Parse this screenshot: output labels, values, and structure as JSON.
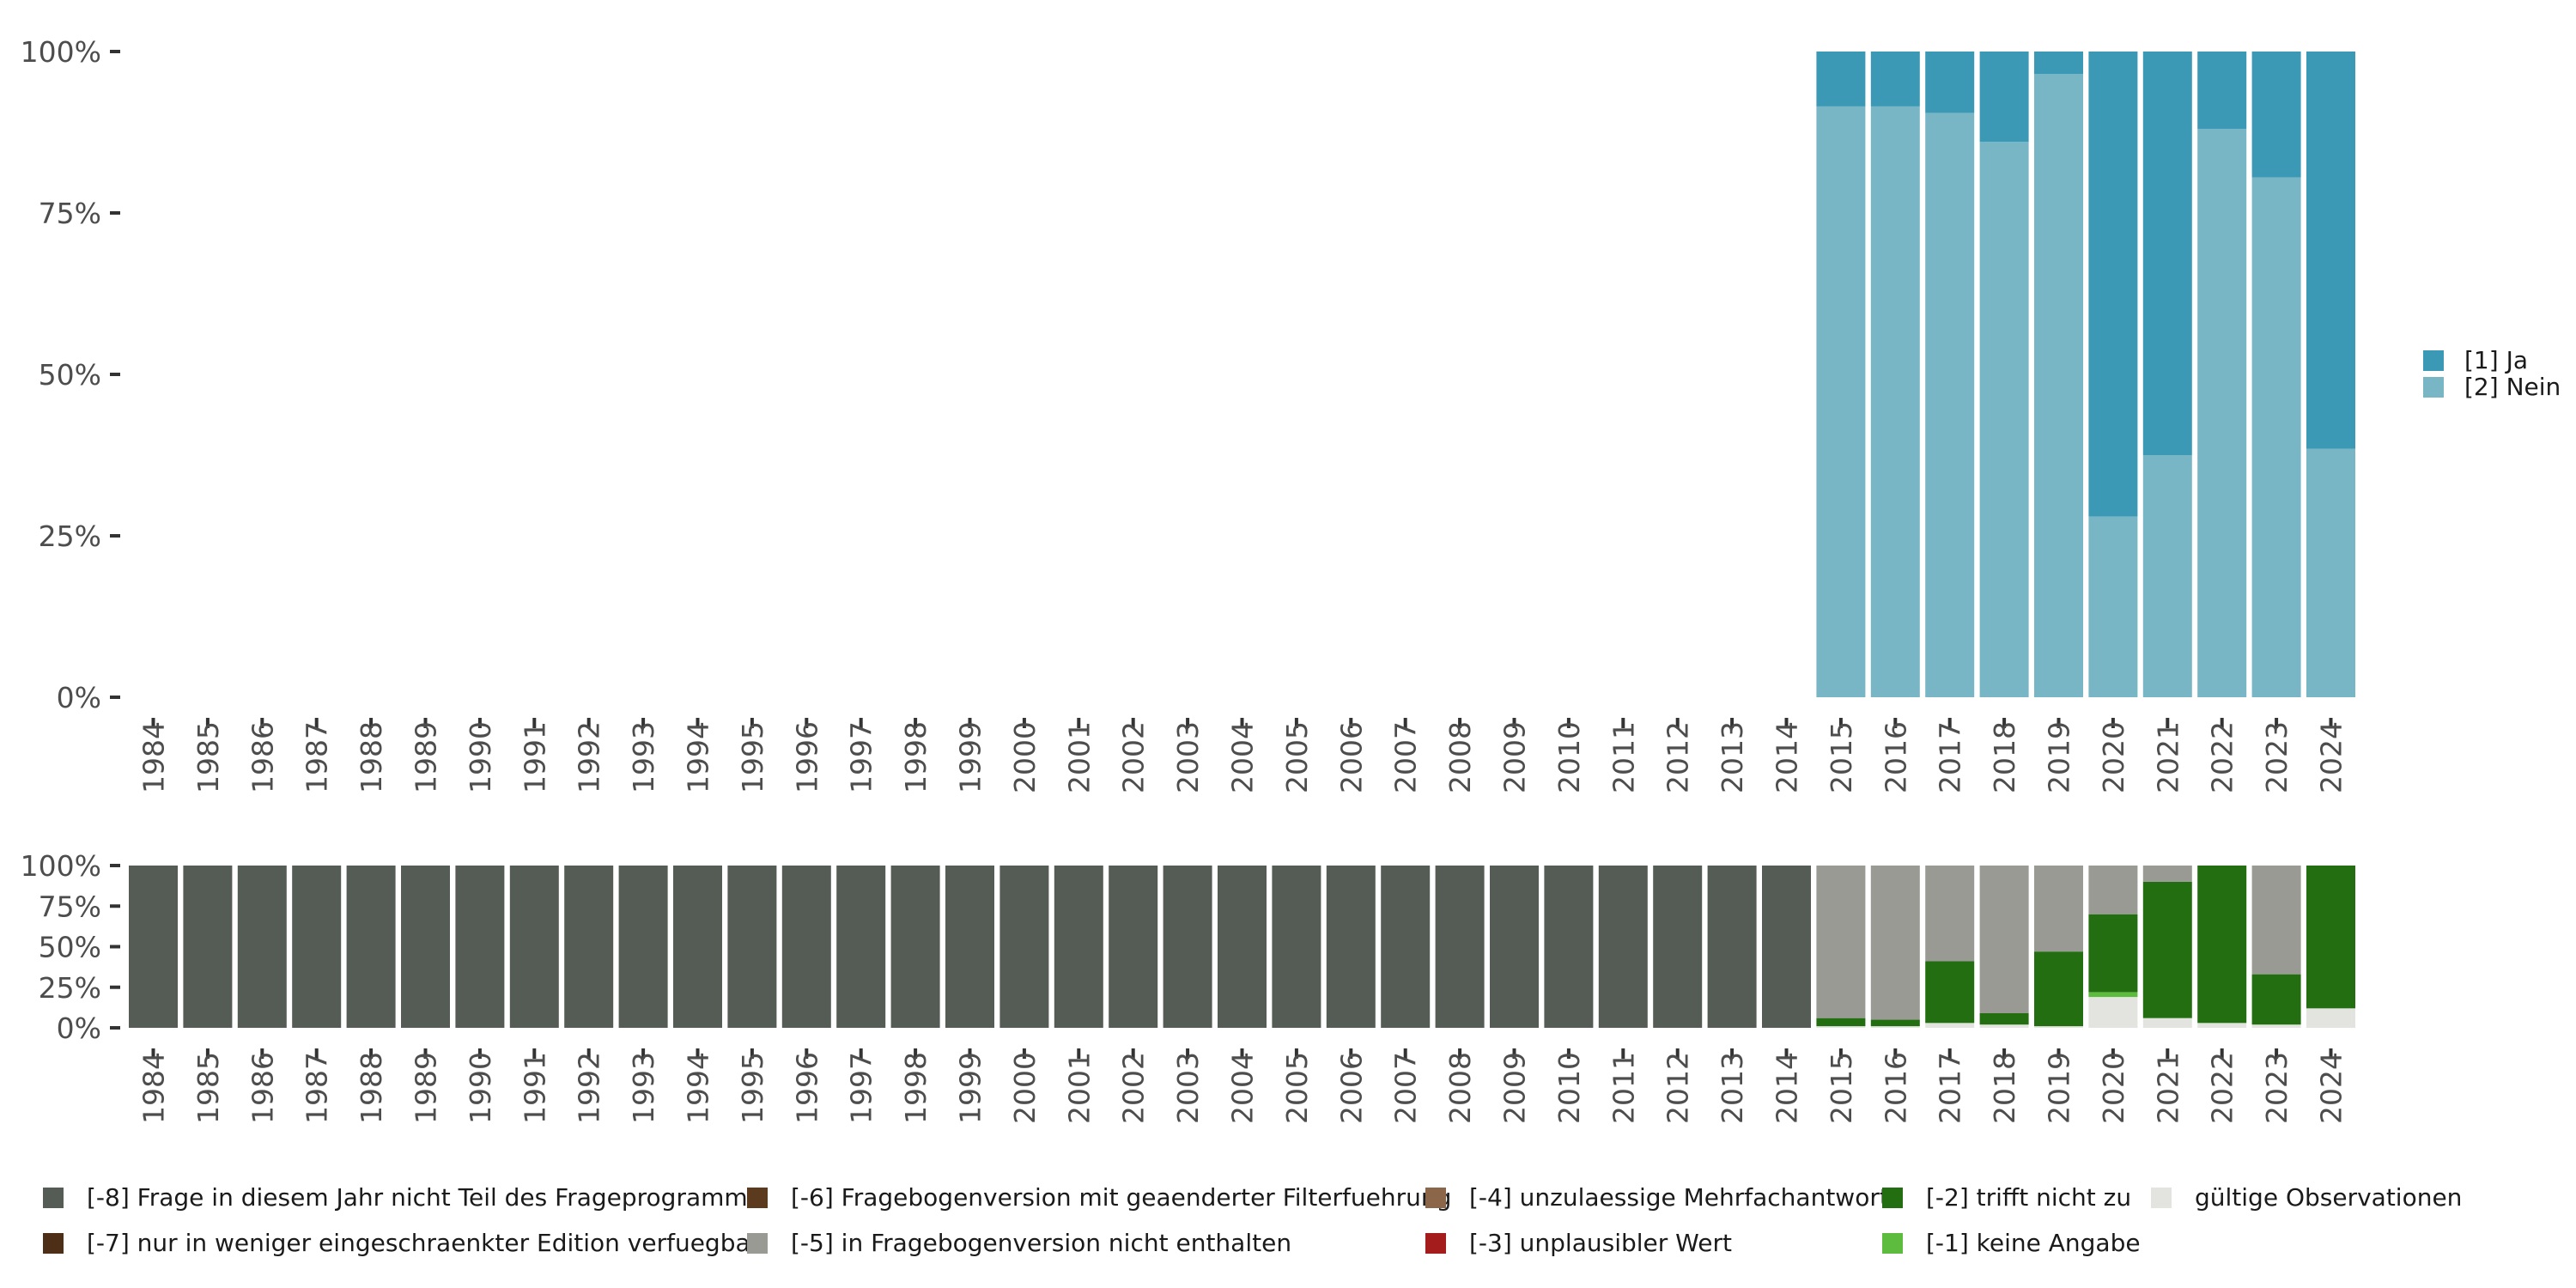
{
  "chart_data": [
    {
      "type": "bar",
      "stacked": true,
      "categories": [
        "1984",
        "1985",
        "1986",
        "1987",
        "1988",
        "1989",
        "1990",
        "1991",
        "1992",
        "1993",
        "1994",
        "1995",
        "1996",
        "1997",
        "1998",
        "1999",
        "2000",
        "2001",
        "2002",
        "2003",
        "2004",
        "2005",
        "2006",
        "2007",
        "2008",
        "2009",
        "2010",
        "2011",
        "2012",
        "2013",
        "2014",
        "2015",
        "2016",
        "2017",
        "2018",
        "2019",
        "2020",
        "2021",
        "2022",
        "2023",
        "2024"
      ],
      "yticks": [
        "0%",
        "25%",
        "50%",
        "75%",
        "100%"
      ],
      "ylim": [
        0,
        1
      ],
      "grid": false,
      "legend_position": "right",
      "series": [
        {
          "name": "[2] Nein",
          "color": "#79b6c5",
          "values": [
            null,
            null,
            null,
            null,
            null,
            null,
            null,
            null,
            null,
            null,
            null,
            null,
            null,
            null,
            null,
            null,
            null,
            null,
            null,
            null,
            null,
            null,
            null,
            null,
            null,
            null,
            null,
            null,
            null,
            null,
            null,
            0.915,
            0.915,
            0.905,
            0.86,
            0.965,
            0.28,
            0.375,
            0.88,
            0.805,
            0.385
          ]
        },
        {
          "name": "[1] Ja",
          "color": "#3b99b5",
          "values": [
            null,
            null,
            null,
            null,
            null,
            null,
            null,
            null,
            null,
            null,
            null,
            null,
            null,
            null,
            null,
            null,
            null,
            null,
            null,
            null,
            null,
            null,
            null,
            null,
            null,
            null,
            null,
            null,
            null,
            null,
            null,
            0.085,
            0.085,
            0.095,
            0.14,
            0.035,
            0.72,
            0.625,
            0.12,
            0.195,
            0.615
          ]
        }
      ]
    },
    {
      "type": "bar",
      "stacked": true,
      "categories": [
        "1984",
        "1985",
        "1986",
        "1987",
        "1988",
        "1989",
        "1990",
        "1991",
        "1992",
        "1993",
        "1994",
        "1995",
        "1996",
        "1997",
        "1998",
        "1999",
        "2000",
        "2001",
        "2002",
        "2003",
        "2004",
        "2005",
        "2006",
        "2007",
        "2008",
        "2009",
        "2010",
        "2011",
        "2012",
        "2013",
        "2014",
        "2015",
        "2016",
        "2017",
        "2018",
        "2019",
        "2020",
        "2021",
        "2022",
        "2023",
        "2024"
      ],
      "yticks": [
        "0%",
        "25%",
        "50%",
        "75%",
        "100%"
      ],
      "ylim": [
        0,
        1
      ],
      "grid": false,
      "legend_position": "bottom",
      "series": [
        {
          "name": "gültige Observationen",
          "color": "#e3e4e0",
          "values": [
            0,
            0,
            0,
            0,
            0,
            0,
            0,
            0,
            0,
            0,
            0,
            0,
            0,
            0,
            0,
            0,
            0,
            0,
            0,
            0,
            0,
            0,
            0,
            0,
            0,
            0,
            0,
            0,
            0,
            0,
            0,
            0.01,
            0.01,
            0.03,
            0.02,
            0.01,
            0.19,
            0.06,
            0.03,
            0.02,
            0.12
          ]
        },
        {
          "name": "[-1] keine Angabe",
          "color": "#5dbb3e",
          "values": [
            0,
            0,
            0,
            0,
            0,
            0,
            0,
            0,
            0,
            0,
            0,
            0,
            0,
            0,
            0,
            0,
            0,
            0,
            0,
            0,
            0,
            0,
            0,
            0,
            0,
            0,
            0,
            0,
            0,
            0,
            0,
            0,
            0,
            0,
            0,
            0,
            0.03,
            0,
            0,
            0,
            0
          ]
        },
        {
          "name": "[-2] trifft nicht zu",
          "color": "#226e10",
          "values": [
            0,
            0,
            0,
            0,
            0,
            0,
            0,
            0,
            0,
            0,
            0,
            0,
            0,
            0,
            0,
            0,
            0,
            0,
            0,
            0,
            0,
            0,
            0,
            0,
            0,
            0,
            0,
            0,
            0,
            0,
            0,
            0.05,
            0.04,
            0.38,
            0.07,
            0.46,
            0.48,
            0.84,
            0.97,
            0.31,
            0.88
          ]
        },
        {
          "name": "[-3] unplausibler Wert",
          "color": "#a51c1c",
          "values": [
            0,
            0,
            0,
            0,
            0,
            0,
            0,
            0,
            0,
            0,
            0,
            0,
            0,
            0,
            0,
            0,
            0,
            0,
            0,
            0,
            0,
            0,
            0,
            0,
            0,
            0,
            0,
            0,
            0,
            0,
            0,
            0,
            0,
            0,
            0,
            0,
            0,
            0,
            0,
            0,
            0
          ]
        },
        {
          "name": "[-4] unzulaessige Mehrfachantwort",
          "color": "#8c6649",
          "values": [
            0,
            0,
            0,
            0,
            0,
            0,
            0,
            0,
            0,
            0,
            0,
            0,
            0,
            0,
            0,
            0,
            0,
            0,
            0,
            0,
            0,
            0,
            0,
            0,
            0,
            0,
            0,
            0,
            0,
            0,
            0,
            0,
            0,
            0,
            0,
            0,
            0,
            0,
            0,
            0,
            0
          ]
        },
        {
          "name": "[-5] in Fragebogenversion nicht enthalten",
          "color": "#989a93",
          "values": [
            0,
            0,
            0,
            0,
            0,
            0,
            0,
            0,
            0,
            0,
            0,
            0,
            0,
            0,
            0,
            0,
            0,
            0,
            0,
            0,
            0,
            0,
            0,
            0,
            0,
            0,
            0,
            0,
            0,
            0,
            0,
            0.94,
            0.95,
            0.59,
            0.91,
            0.53,
            0.3,
            0.1,
            0,
            0.67,
            0
          ]
        },
        {
          "name": "[-6] Fragebogenversion mit geaenderter Filterfuehrung",
          "color": "#5c3a1d",
          "values": [
            0,
            0,
            0,
            0,
            0,
            0,
            0,
            0,
            0,
            0,
            0,
            0,
            0,
            0,
            0,
            0,
            0,
            0,
            0,
            0,
            0,
            0,
            0,
            0,
            0,
            0,
            0,
            0,
            0,
            0,
            0,
            0,
            0,
            0,
            0,
            0,
            0,
            0,
            0,
            0,
            0
          ]
        },
        {
          "name": "[-7] nur in weniger eingeschraenkter Edition verfuegbar",
          "color": "#4d2f18",
          "values": [
            0,
            0,
            0,
            0,
            0,
            0,
            0,
            0,
            0,
            0,
            0,
            0,
            0,
            0,
            0,
            0,
            0,
            0,
            0,
            0,
            0,
            0,
            0,
            0,
            0,
            0,
            0,
            0,
            0,
            0,
            0,
            0,
            0,
            0,
            0,
            0,
            0,
            0,
            0,
            0,
            0
          ]
        },
        {
          "name": "[-8] Frage in diesem Jahr nicht Teil des Frageprogramms",
          "color": "#555b55",
          "values": [
            1,
            1,
            1,
            1,
            1,
            1,
            1,
            1,
            1,
            1,
            1,
            1,
            1,
            1,
            1,
            1,
            1,
            1,
            1,
            1,
            1,
            1,
            1,
            1,
            1,
            1,
            1,
            1,
            1,
            1,
            1,
            0,
            0,
            0,
            0,
            0,
            0,
            0,
            0,
            0,
            0
          ]
        }
      ],
      "legend_order": [
        "[-8] Frage in diesem Jahr nicht Teil des Frageprogramms",
        "[-7] nur in weniger eingeschraenkter Edition verfuegbar",
        "[-6] Fragebogenversion mit geaenderter Filterfuehrung",
        "[-5] in Fragebogenversion nicht enthalten",
        "[-4] unzulaessige Mehrfachantwort",
        "[-3] unplausibler Wert",
        "[-2] trifft nicht zu",
        "[-1] keine Angabe",
        "gültige Observationen"
      ]
    }
  ]
}
